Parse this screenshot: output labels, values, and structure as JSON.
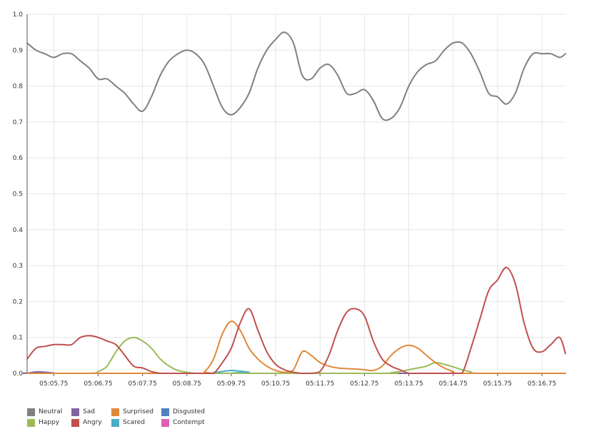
{
  "chart_data": {
    "type": "line",
    "title": "",
    "xlabel": "",
    "ylabel": "",
    "ylim": [
      0,
      1.0
    ],
    "xlim": [
      "05:05.15",
      "05:17.28"
    ],
    "grid": true,
    "legend_position": "bottom-left",
    "y_ticks": [
      "0.0",
      "0.1",
      "0.2",
      "0.3",
      "0.4",
      "0.5",
      "0.6",
      "0.7",
      "0.8",
      "0.9",
      "1.0"
    ],
    "x_ticks": [
      "05:05.75",
      "05:06.75",
      "05:07.75",
      "05:08.75",
      "05:09.75",
      "05:10.75",
      "05:11.75",
      "05:12.75",
      "05:13.75",
      "05:14.75",
      "05:15.75",
      "05:16.75"
    ],
    "legend": [
      {
        "name": "Neutral",
        "color": "#808080"
      },
      {
        "name": "Happy",
        "color": "#9bbb59"
      },
      {
        "name": "Sad",
        "color": "#8064a2"
      },
      {
        "name": "Angry",
        "color": "#c0504d"
      },
      {
        "name": "Surprised",
        "color": "#e0883a"
      },
      {
        "name": "Scared",
        "color": "#4bacc6"
      },
      {
        "name": "Disgusted",
        "color": "#4f81bd"
      },
      {
        "name": "Contempt",
        "color": "#e060b0"
      }
    ],
    "series": [
      {
        "name": "Neutral",
        "color": "#808080",
        "x": [
          "05:05.15",
          "05:05.35",
          "05:05.55",
          "05:05.75",
          "05:05.95",
          "05:06.15",
          "05:06.35",
          "05:06.55",
          "05:06.75",
          "05:06.95",
          "05:07.15",
          "05:07.35",
          "05:07.55",
          "05:07.75",
          "05:07.95",
          "05:08.15",
          "05:08.35",
          "05:08.55",
          "05:08.75",
          "05:08.95",
          "05:09.15",
          "05:09.35",
          "05:09.55",
          "05:09.75",
          "05:09.95",
          "05:10.15",
          "05:10.35",
          "05:10.55",
          "05:10.75",
          "05:10.95",
          "05:11.15",
          "05:11.35",
          "05:11.55",
          "05:11.75",
          "05:11.95",
          "05:12.15",
          "05:12.35",
          "05:12.55",
          "05:12.75",
          "05:12.95",
          "05:13.15",
          "05:13.35",
          "05:13.55",
          "05:13.75",
          "05:13.95",
          "05:14.15",
          "05:14.35",
          "05:14.55",
          "05:14.75",
          "05:14.95",
          "05:15.15",
          "05:15.35",
          "05:15.55",
          "05:15.75",
          "05:15.95",
          "05:16.15",
          "05:16.35",
          "05:16.55",
          "05:16.75",
          "05:16.95",
          "05:17.15",
          "05:17.28"
        ],
        "values": [
          0.92,
          0.9,
          0.89,
          0.88,
          0.89,
          0.89,
          0.87,
          0.85,
          0.82,
          0.82,
          0.8,
          0.78,
          0.75,
          0.73,
          0.77,
          0.83,
          0.87,
          0.89,
          0.9,
          0.89,
          0.86,
          0.8,
          0.74,
          0.72,
          0.74,
          0.78,
          0.85,
          0.9,
          0.93,
          0.95,
          0.92,
          0.83,
          0.82,
          0.85,
          0.86,
          0.83,
          0.78,
          0.78,
          0.79,
          0.76,
          0.71,
          0.71,
          0.74,
          0.8,
          0.84,
          0.86,
          0.87,
          0.9,
          0.92,
          0.92,
          0.89,
          0.84,
          0.78,
          0.77,
          0.75,
          0.78,
          0.85,
          0.89,
          0.89,
          0.89,
          0.88,
          0.89
        ]
      },
      {
        "name": "Happy",
        "color": "#9bbb59",
        "x": [
          "05:05.15",
          "05:06.55",
          "05:06.75",
          "05:06.95",
          "05:07.15",
          "05:07.35",
          "05:07.55",
          "05:07.75",
          "05:07.95",
          "05:08.15",
          "05:08.35",
          "05:08.55",
          "05:08.75",
          "05:08.95",
          "05:09.15",
          "05:13.15",
          "05:13.35",
          "05:13.55",
          "05:13.75",
          "05:13.95",
          "05:14.15",
          "05:14.35",
          "05:14.55",
          "05:14.75",
          "05:14.95",
          "05:15.15",
          "05:15.35",
          "05:17.28"
        ],
        "values": [
          0.0,
          0.0,
          0.005,
          0.02,
          0.06,
          0.09,
          0.1,
          0.09,
          0.07,
          0.04,
          0.02,
          0.008,
          0.003,
          0.0,
          0.0,
          0.0,
          0.002,
          0.005,
          0.01,
          0.015,
          0.02,
          0.03,
          0.025,
          0.018,
          0.01,
          0.004,
          0.0,
          0.0
        ]
      },
      {
        "name": "Sad",
        "color": "#8064a2",
        "x": [
          "05:05.15",
          "05:05.35",
          "05:05.55",
          "05:05.75",
          "05:05.95",
          "05:17.28"
        ],
        "values": [
          0.0,
          0.004,
          0.003,
          0.001,
          0.0,
          0.0
        ]
      },
      {
        "name": "Angry",
        "color": "#c0504d",
        "x": [
          "05:05.15",
          "05:05.35",
          "05:05.55",
          "05:05.75",
          "05:05.95",
          "05:06.15",
          "05:06.35",
          "05:06.55",
          "05:06.75",
          "05:06.95",
          "05:07.15",
          "05:07.35",
          "05:07.55",
          "05:07.75",
          "05:07.95",
          "05:08.15",
          "05:08.35",
          "05:08.55",
          "05:08.75",
          "05:08.95",
          "05:09.15",
          "05:09.35",
          "05:09.55",
          "05:09.75",
          "05:09.95",
          "05:10.15",
          "05:10.35",
          "05:10.55",
          "05:10.75",
          "05:10.95",
          "05:11.15",
          "05:11.35",
          "05:11.55",
          "05:11.75",
          "05:11.95",
          "05:12.15",
          "05:12.35",
          "05:12.55",
          "05:12.75",
          "05:12.95",
          "05:13.15",
          "05:13.35",
          "05:13.55",
          "05:13.75",
          "05:13.95",
          "05:14.15",
          "05:14.35",
          "05:14.55",
          "05:14.75",
          "05:14.95",
          "05:15.15",
          "05:15.35",
          "05:15.55",
          "05:15.75",
          "05:15.95",
          "05:16.15",
          "05:16.35",
          "05:16.55",
          "05:16.75",
          "05:16.95",
          "05:17.15",
          "05:17.28"
        ],
        "values": [
          0.04,
          0.07,
          0.075,
          0.08,
          0.08,
          0.08,
          0.1,
          0.105,
          0.1,
          0.09,
          0.08,
          0.05,
          0.02,
          0.015,
          0.005,
          0.0,
          0.0,
          0.0,
          0.0,
          0.0,
          0.0,
          0.0,
          0.03,
          0.07,
          0.14,
          0.18,
          0.12,
          0.06,
          0.025,
          0.01,
          0.003,
          0.0,
          0.0,
          0.005,
          0.05,
          0.12,
          0.17,
          0.18,
          0.16,
          0.09,
          0.04,
          0.02,
          0.01,
          0.0,
          0.0,
          0.0,
          0.0,
          0.0,
          0.0,
          0.0,
          0.07,
          0.15,
          0.23,
          0.26,
          0.295,
          0.25,
          0.14,
          0.07,
          0.06,
          0.08,
          0.1,
          0.055
        ]
      },
      {
        "name": "Surprised",
        "color": "#e0883a",
        "x": [
          "05:05.15",
          "05:08.95",
          "05:09.15",
          "05:09.35",
          "05:09.55",
          "05:09.75",
          "05:09.95",
          "05:10.15",
          "05:10.35",
          "05:10.55",
          "05:10.75",
          "05:10.95",
          "05:11.15",
          "05:11.35",
          "05:11.55",
          "05:11.75",
          "05:11.95",
          "05:12.15",
          "05:12.35",
          "05:12.55",
          "05:12.75",
          "05:12.95",
          "05:13.15",
          "05:13.35",
          "05:13.55",
          "05:13.75",
          "05:13.95",
          "05:14.15",
          "05:14.35",
          "05:14.55",
          "05:14.75",
          "05:14.95",
          "05:17.28"
        ],
        "values": [
          0.0,
          0.0,
          0.005,
          0.04,
          0.11,
          0.145,
          0.12,
          0.07,
          0.04,
          0.02,
          0.008,
          0.003,
          0.01,
          0.06,
          0.05,
          0.03,
          0.02,
          0.015,
          0.013,
          0.012,
          0.01,
          0.008,
          0.02,
          0.05,
          0.07,
          0.078,
          0.07,
          0.05,
          0.03,
          0.015,
          0.005,
          0.0,
          0.0
        ]
      },
      {
        "name": "Scared",
        "color": "#4bacc6",
        "x": [
          "05:05.15",
          "05:09.15",
          "05:09.35",
          "05:09.55",
          "05:09.75",
          "05:09.95",
          "05:10.15",
          "05:10.35",
          "05:17.28"
        ],
        "values": [
          0.0,
          0.0,
          0.002,
          0.005,
          0.008,
          0.006,
          0.003,
          0.0,
          0.0
        ]
      },
      {
        "name": "Disgusted",
        "color": "#4f81bd",
        "x": [
          "05:05.15",
          "05:17.28"
        ],
        "values": [
          0.0,
          0.0
        ]
      },
      {
        "name": "Contempt",
        "color": "#e060b0",
        "x": [
          "05:05.15",
          "05:17.28"
        ],
        "values": [
          0.0,
          0.0
        ]
      }
    ]
  }
}
